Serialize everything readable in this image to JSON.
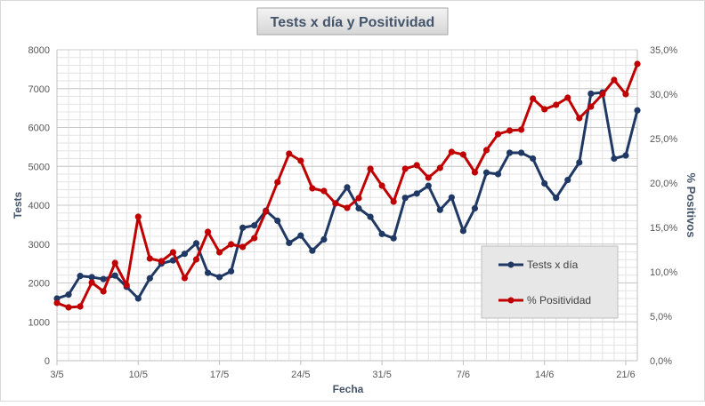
{
  "chart_data": {
    "type": "line",
    "title": "Tests x día y Positividad",
    "xlabel": "Fecha",
    "ylabel_left": "Tests",
    "ylabel_right": "% Positivos",
    "ylim_left": [
      0,
      8000
    ],
    "ylim_right": [
      0,
      35
    ],
    "yticks_left": [
      "0",
      "1000",
      "2000",
      "3000",
      "4000",
      "5000",
      "6000",
      "7000",
      "8000"
    ],
    "yticks_right": [
      "0,0%",
      "5,0%",
      "10,0%",
      "15,0%",
      "20,0%",
      "25,0%",
      "30,0%",
      "35,0%"
    ],
    "x_tick_labels": [
      {
        "index": 0,
        "label": "3/5"
      },
      {
        "index": 7,
        "label": "10/5"
      },
      {
        "index": 14,
        "label": "17/5"
      },
      {
        "index": 21,
        "label": "24/5"
      },
      {
        "index": 28,
        "label": "31/5"
      },
      {
        "index": 35,
        "label": "7/6"
      },
      {
        "index": 42,
        "label": "14/6"
      },
      {
        "index": 49,
        "label": "21/6"
      }
    ],
    "series": [
      {
        "name": "Tests x día",
        "color": "#203864",
        "axis": "left",
        "values": [
          1600,
          1700,
          2180,
          2150,
          2100,
          2190,
          1900,
          1600,
          2120,
          2500,
          2580,
          2750,
          3020,
          2260,
          2150,
          2300,
          3420,
          3480,
          3860,
          3600,
          3030,
          3220,
          2830,
          3120,
          4050,
          4460,
          3920,
          3700,
          3260,
          3150,
          4190,
          4300,
          4500,
          3880,
          4200,
          3340,
          3920,
          4840,
          4800,
          5350,
          5350,
          5200,
          4560,
          4190,
          4650,
          5100,
          6870,
          6900,
          5200,
          5280,
          6440
        ]
      },
      {
        "name": "% Positividad",
        "color": "#C00000",
        "axis": "right",
        "values": [
          6.5,
          6.0,
          6.1,
          8.8,
          7.8,
          11.0,
          8.5,
          16.2,
          11.5,
          11.2,
          12.2,
          9.3,
          11.4,
          14.5,
          12.2,
          13.1,
          12.8,
          13.8,
          16.8,
          20.1,
          23.3,
          22.5,
          19.4,
          19.1,
          17.7,
          17.2,
          18.3,
          21.6,
          19.7,
          17.9,
          21.6,
          22.0,
          20.6,
          21.7,
          23.5,
          23.2,
          21.2,
          23.7,
          25.5,
          25.9,
          26.0,
          29.5,
          28.3,
          28.8,
          29.6,
          27.3,
          28.6,
          30.0,
          31.6,
          30.0,
          33.4
        ]
      }
    ],
    "legend": {
      "position": "right",
      "items": [
        "Tests x día",
        "% Positividad"
      ]
    }
  }
}
